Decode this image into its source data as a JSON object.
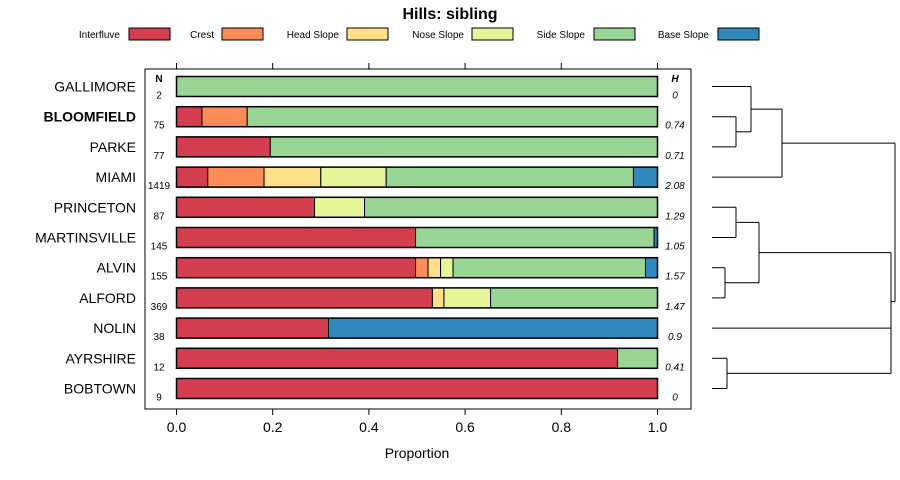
{
  "chart_data": {
    "type": "bar",
    "stacked": true,
    "orientation": "horizontal",
    "title": "Hills: sibling",
    "xlabel": "Proportion",
    "xlim": [
      0,
      1
    ],
    "xticks": [
      "0.0",
      "0.2",
      "0.4",
      "0.6",
      "0.8",
      "1.0"
    ],
    "n_header": "N",
    "h_header": "H",
    "legend_position": "top",
    "series": [
      {
        "name": "Interfluve",
        "color": "#d53e4f"
      },
      {
        "name": "Crest",
        "color": "#fc8d59"
      },
      {
        "name": "Head Slope",
        "color": "#fee08b"
      },
      {
        "name": "Nose Slope",
        "color": "#e6f598"
      },
      {
        "name": "Side Slope",
        "color": "#99d594"
      },
      {
        "name": "Base Slope",
        "color": "#3288bd"
      }
    ],
    "categories": [
      {
        "name": "GALLIMORE",
        "bold": false,
        "n": "2",
        "h": "0",
        "values": [
          0,
          0,
          0,
          0,
          1.0,
          0
        ]
      },
      {
        "name": "BLOOMFIELD",
        "bold": true,
        "n": "75",
        "h": "0.74",
        "values": [
          0.053,
          0.094,
          0,
          0,
          0.853,
          0
        ]
      },
      {
        "name": "PARKE",
        "bold": false,
        "n": "77",
        "h": "0.71",
        "values": [
          0.195,
          0,
          0,
          0,
          0.805,
          0
        ]
      },
      {
        "name": "MIAMI",
        "bold": false,
        "n": "1419",
        "h": "2.08",
        "values": [
          0.065,
          0.117,
          0.118,
          0.136,
          0.514,
          0.05
        ]
      },
      {
        "name": "PRINCETON",
        "bold": false,
        "n": "87",
        "h": "1.29",
        "values": [
          0.287,
          0,
          0,
          0.104,
          0.609,
          0
        ]
      },
      {
        "name": "MARTINSVILLE",
        "bold": false,
        "n": "145",
        "h": "1.05",
        "values": [
          0.497,
          0,
          0,
          0,
          0.496,
          0.007
        ]
      },
      {
        "name": "ALVIN",
        "bold": false,
        "n": "155",
        "h": "1.57",
        "values": [
          0.497,
          0.026,
          0.026,
          0.026,
          0.4,
          0.025
        ]
      },
      {
        "name": "ALFORD",
        "bold": false,
        "n": "369",
        "h": "1.47",
        "values": [
          0.532,
          0,
          0.024,
          0.097,
          0.347,
          0
        ]
      },
      {
        "name": "NOLIN",
        "bold": false,
        "n": "38",
        "h": "0.9",
        "values": [
          0.316,
          0,
          0,
          0,
          0,
          0.684
        ]
      },
      {
        "name": "AYRSHIRE",
        "bold": false,
        "n": "12",
        "h": "0.41",
        "values": [
          0.917,
          0,
          0,
          0,
          0.083,
          0
        ]
      },
      {
        "name": "BOBTOWN",
        "bold": false,
        "n": "9",
        "h": "0",
        "values": [
          1.0,
          0,
          0,
          0,
          0,
          0
        ]
      }
    ],
    "dendrogram": {
      "clusters": [
        [
          [
            "GALLIMORE",
            [
              "BLOOMFIELD",
              "PARKE"
            ]
          ],
          "MIAMI"
        ],
        [
          [
            [
              "PRINCETON",
              "MARTINSVILLE"
            ],
            [
              "ALVIN",
              "ALFORD"
            ]
          ],
          [
            "NOLIN",
            [
              "AYRSHIRE",
              "BOBTOWN"
            ]
          ]
        ]
      ]
    }
  }
}
